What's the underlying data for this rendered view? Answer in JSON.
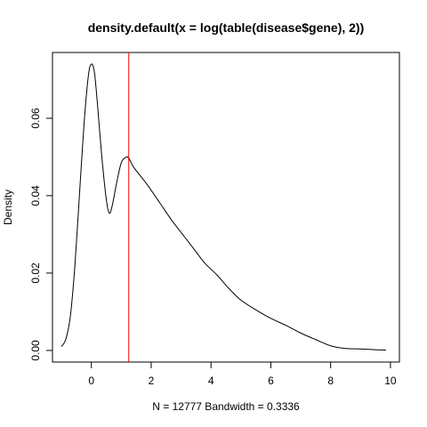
{
  "chart_data": {
    "type": "line",
    "title": "density.default(x = log(table(disease$gene), 2))",
    "xlabel": "N = 12777   Bandwidth = 0.3336",
    "ylabel": "Density",
    "xlim": [
      -1.3,
      10.3
    ],
    "ylim": [
      -0.003,
      0.077
    ],
    "x_ticks": [
      0,
      2,
      4,
      6,
      8,
      10
    ],
    "x_tick_labels": [
      "0",
      "2",
      "4",
      "6",
      "8",
      "10"
    ],
    "y_ticks": [
      0.0,
      0.02,
      0.04,
      0.06
    ],
    "y_tick_labels": [
      "0.00",
      "0.02",
      "0.04",
      "0.06"
    ],
    "grid": false,
    "series": [
      {
        "x": [
          -1.0,
          -0.85,
          -0.7,
          -0.55,
          -0.4,
          -0.25,
          -0.1,
          0.0,
          0.1,
          0.2,
          0.35,
          0.5,
          0.6,
          0.7,
          0.85,
          1.0,
          1.15,
          1.25,
          1.4,
          1.6,
          1.9,
          2.3,
          2.7,
          3.1,
          3.5,
          3.8,
          4.2,
          4.6,
          5.0,
          5.5,
          6.0,
          6.5,
          7.0,
          7.5,
          8.0,
          8.5,
          9.0,
          9.5,
          9.85
        ],
        "y": [
          0.001,
          0.003,
          0.009,
          0.022,
          0.04,
          0.058,
          0.071,
          0.074,
          0.072,
          0.064,
          0.05,
          0.039,
          0.0355,
          0.0375,
          0.0435,
          0.0485,
          0.0499,
          0.0497,
          0.0475,
          0.0455,
          0.0425,
          0.038,
          0.0335,
          0.0295,
          0.0255,
          0.0225,
          0.0195,
          0.016,
          0.013,
          0.0105,
          0.0083,
          0.0065,
          0.0045,
          0.0028,
          0.0012,
          0.0005,
          0.0004,
          0.0002,
          0.0001
        ]
      }
    ],
    "reference_line": {
      "x": 1.25,
      "color": "#ff0000",
      "orientation": "vertical"
    }
  }
}
